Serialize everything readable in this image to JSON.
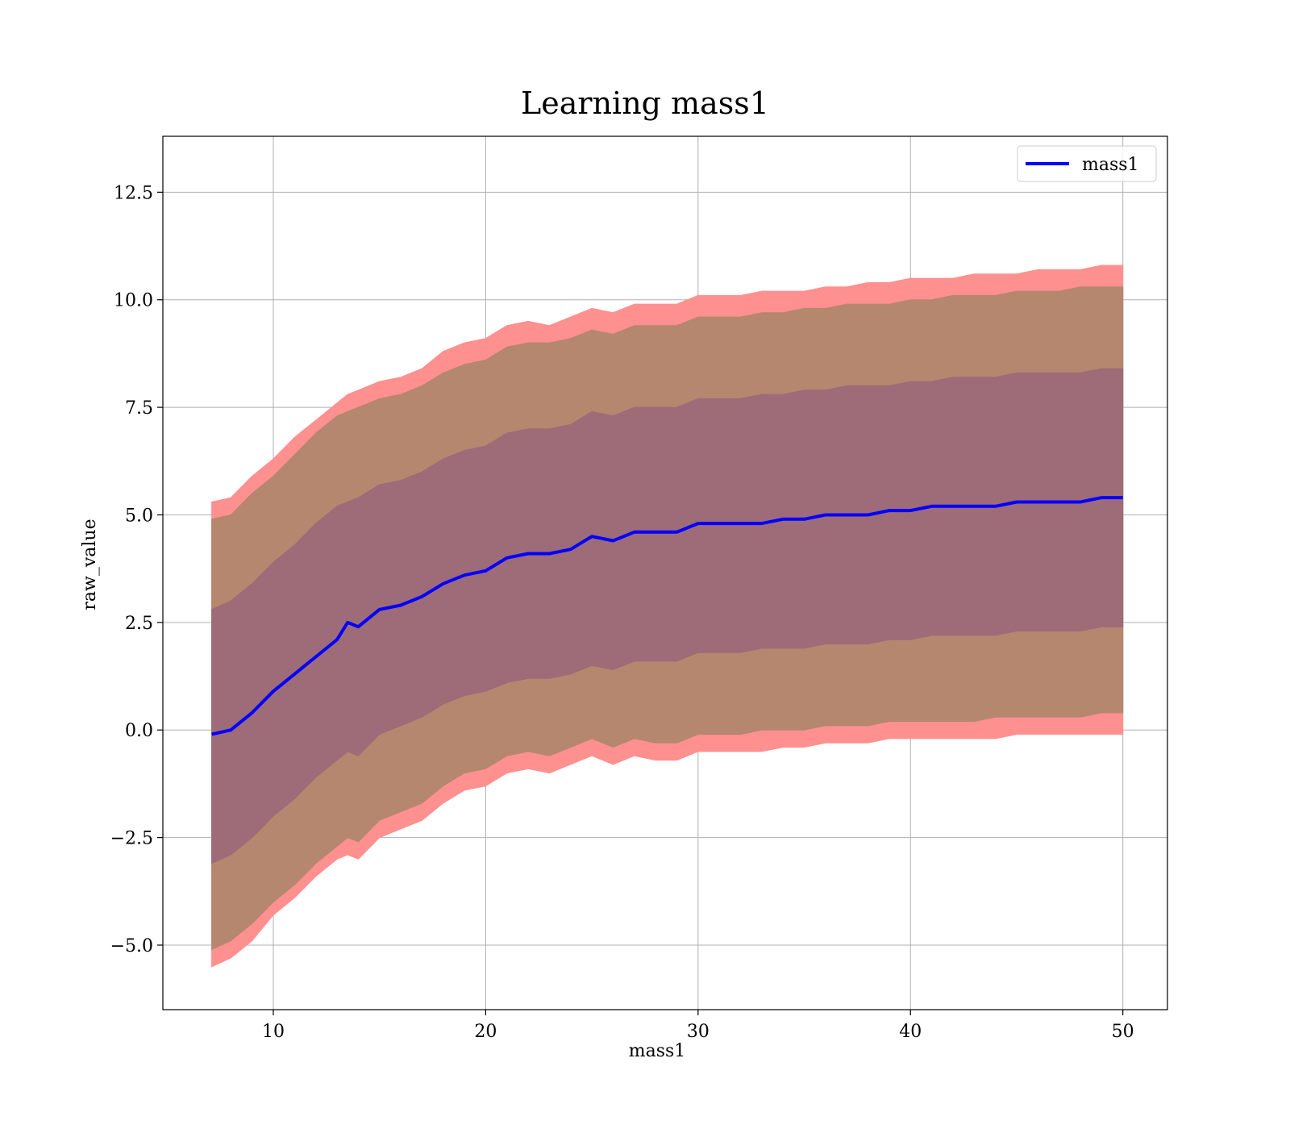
{
  "chart_data": {
    "type": "line",
    "title": "Learning mass1",
    "xlabel": "mass1",
    "ylabel": "raw_value",
    "xlim": [
      4.8,
      52.1
    ],
    "ylim": [
      -6.5,
      13.8
    ],
    "xticks": [
      10,
      20,
      30,
      40,
      50
    ],
    "xtick_labels": [
      "10",
      "20",
      "30",
      "40",
      "50"
    ],
    "yticks": [
      -5.0,
      -2.5,
      0.0,
      2.5,
      5.0,
      7.5,
      10.0,
      12.5
    ],
    "ytick_labels": [
      "−5.0",
      "−2.5",
      "0.0",
      "2.5",
      "5.0",
      "7.5",
      "10.0",
      "12.5"
    ],
    "grid": true,
    "legend": {
      "placement": "upper right",
      "entries": [
        "mass1"
      ]
    },
    "series": [
      {
        "name": "mass1",
        "color": "#0000ff",
        "x": [
          7.1,
          8,
          9,
          10,
          11,
          12,
          13,
          13.5,
          14,
          15,
          16,
          17,
          18,
          19,
          20,
          21,
          22,
          23,
          24,
          25,
          26,
          27,
          28,
          29,
          30,
          31,
          32,
          33,
          34,
          35,
          36,
          37,
          38,
          39,
          40,
          41,
          42,
          43,
          44,
          45,
          46,
          47,
          48,
          49,
          50
        ],
        "y": [
          -0.1,
          0.0,
          0.4,
          0.9,
          1.3,
          1.7,
          2.1,
          2.5,
          2.4,
          2.8,
          2.9,
          3.1,
          3.4,
          3.6,
          3.7,
          4.0,
          4.1,
          4.1,
          4.2,
          4.5,
          4.4,
          4.6,
          4.6,
          4.6,
          4.8,
          4.8,
          4.8,
          4.8,
          4.9,
          4.9,
          5.0,
          5.0,
          5.0,
          5.1,
          5.1,
          5.2,
          5.2,
          5.2,
          5.2,
          5.3,
          5.3,
          5.3,
          5.3,
          5.4,
          5.4
        ]
      }
    ],
    "bands": [
      {
        "color": "#ff9090",
        "lower": [
          -5.5,
          -5.3,
          -4.9,
          -4.3,
          -3.9,
          -3.4,
          -3.0,
          -2.9,
          -3.0,
          -2.5,
          -2.3,
          -2.1,
          -1.7,
          -1.4,
          -1.3,
          -1.0,
          -0.9,
          -1.0,
          -0.8,
          -0.6,
          -0.8,
          -0.6,
          -0.7,
          -0.7,
          -0.5,
          -0.5,
          -0.5,
          -0.5,
          -0.4,
          -0.4,
          -0.3,
          -0.3,
          -0.3,
          -0.2,
          -0.2,
          -0.2,
          -0.2,
          -0.2,
          -0.2,
          -0.1,
          -0.1,
          -0.1,
          -0.1,
          -0.1,
          -0.1
        ],
        "upper": [
          5.3,
          5.4,
          5.9,
          6.3,
          6.8,
          7.2,
          7.6,
          7.8,
          7.9,
          8.1,
          8.2,
          8.4,
          8.8,
          9.0,
          9.1,
          9.4,
          9.5,
          9.4,
          9.6,
          9.8,
          9.7,
          9.9,
          9.9,
          9.9,
          10.1,
          10.1,
          10.1,
          10.2,
          10.2,
          10.2,
          10.3,
          10.3,
          10.4,
          10.4,
          10.5,
          10.5,
          10.5,
          10.6,
          10.6,
          10.6,
          10.7,
          10.7,
          10.7,
          10.8,
          10.8
        ]
      },
      {
        "color": "#b5876e",
        "lower": [
          -5.1,
          -4.9,
          -4.5,
          -4.0,
          -3.6,
          -3.1,
          -2.7,
          -2.5,
          -2.6,
          -2.1,
          -1.9,
          -1.7,
          -1.3,
          -1.0,
          -0.9,
          -0.6,
          -0.5,
          -0.6,
          -0.4,
          -0.2,
          -0.4,
          -0.2,
          -0.3,
          -0.3,
          -0.1,
          -0.1,
          -0.1,
          0.0,
          0.0,
          0.0,
          0.1,
          0.1,
          0.1,
          0.2,
          0.2,
          0.2,
          0.2,
          0.2,
          0.3,
          0.3,
          0.3,
          0.3,
          0.3,
          0.4,
          0.4
        ],
        "upper": [
          4.9,
          5.0,
          5.5,
          5.9,
          6.4,
          6.9,
          7.3,
          7.4,
          7.5,
          7.7,
          7.8,
          8.0,
          8.3,
          8.5,
          8.6,
          8.9,
          9.0,
          9.0,
          9.1,
          9.3,
          9.2,
          9.4,
          9.4,
          9.4,
          9.6,
          9.6,
          9.6,
          9.7,
          9.7,
          9.8,
          9.8,
          9.9,
          9.9,
          9.9,
          10.0,
          10.0,
          10.1,
          10.1,
          10.1,
          10.2,
          10.2,
          10.2,
          10.3,
          10.3,
          10.3
        ]
      },
      {
        "color": "#9e6b78",
        "lower": [
          -3.1,
          -2.9,
          -2.5,
          -2.0,
          -1.6,
          -1.1,
          -0.7,
          -0.5,
          -0.6,
          -0.1,
          0.1,
          0.3,
          0.6,
          0.8,
          0.9,
          1.1,
          1.2,
          1.2,
          1.3,
          1.5,
          1.4,
          1.6,
          1.6,
          1.6,
          1.8,
          1.8,
          1.8,
          1.9,
          1.9,
          1.9,
          2.0,
          2.0,
          2.0,
          2.1,
          2.1,
          2.2,
          2.2,
          2.2,
          2.2,
          2.3,
          2.3,
          2.3,
          2.3,
          2.4,
          2.4
        ],
        "upper": [
          2.8,
          3.0,
          3.4,
          3.9,
          4.3,
          4.8,
          5.2,
          5.3,
          5.4,
          5.7,
          5.8,
          6.0,
          6.3,
          6.5,
          6.6,
          6.9,
          7.0,
          7.0,
          7.1,
          7.4,
          7.3,
          7.5,
          7.5,
          7.5,
          7.7,
          7.7,
          7.7,
          7.8,
          7.8,
          7.9,
          7.9,
          8.0,
          8.0,
          8.0,
          8.1,
          8.1,
          8.2,
          8.2,
          8.2,
          8.3,
          8.3,
          8.3,
          8.3,
          8.4,
          8.4
        ]
      }
    ]
  }
}
